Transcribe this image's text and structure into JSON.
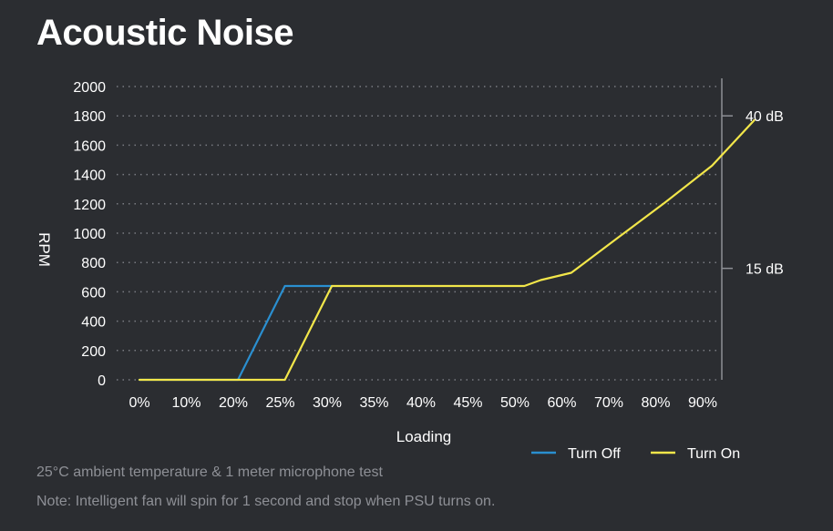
{
  "chart_data": {
    "type": "line",
    "title": "Acoustic Noise",
    "xlabel": "Loading",
    "ylabel": "RPM",
    "x_tick_labels": [
      "0%",
      "10%",
      "20%",
      "25%",
      "30%",
      "35%",
      "40%",
      "45%",
      "50%",
      "60%",
      "70%",
      "80%",
      "90%"
    ],
    "y_ticks": [
      0,
      200,
      400,
      600,
      800,
      1000,
      1200,
      1400,
      1600,
      1800,
      2000
    ],
    "ylim": [
      0,
      2000
    ],
    "grid": true,
    "right_axis_labels": [
      {
        "value": 1800,
        "label": "40 dB"
      },
      {
        "value": 760,
        "label": "15 dB"
      }
    ],
    "series": [
      {
        "name": "Turn Off",
        "color": "#2a8fd0",
        "points": [
          [
            0,
            0
          ],
          [
            2.1,
            0
          ],
          [
            3.1,
            640
          ],
          [
            4.1,
            640
          ]
        ]
      },
      {
        "name": "Turn On",
        "color": "#f2e64a",
        "points": [
          [
            0,
            0
          ],
          [
            3.1,
            0
          ],
          [
            4.1,
            640
          ],
          [
            7.2,
            640
          ],
          [
            8.2,
            640
          ],
          [
            8.55,
            680
          ],
          [
            9.2,
            730
          ],
          [
            10.2,
            970
          ],
          [
            11.2,
            1210
          ],
          [
            12.2,
            1460
          ],
          [
            13.1,
            1770
          ]
        ]
      }
    ],
    "legend": {
      "placement": "bottom-right"
    }
  },
  "notes": {
    "line1": "25°C ambient temperature & 1 meter microphone test",
    "line2": "Note: Intelligent fan will spin for 1 second and stop when PSU turns on."
  }
}
